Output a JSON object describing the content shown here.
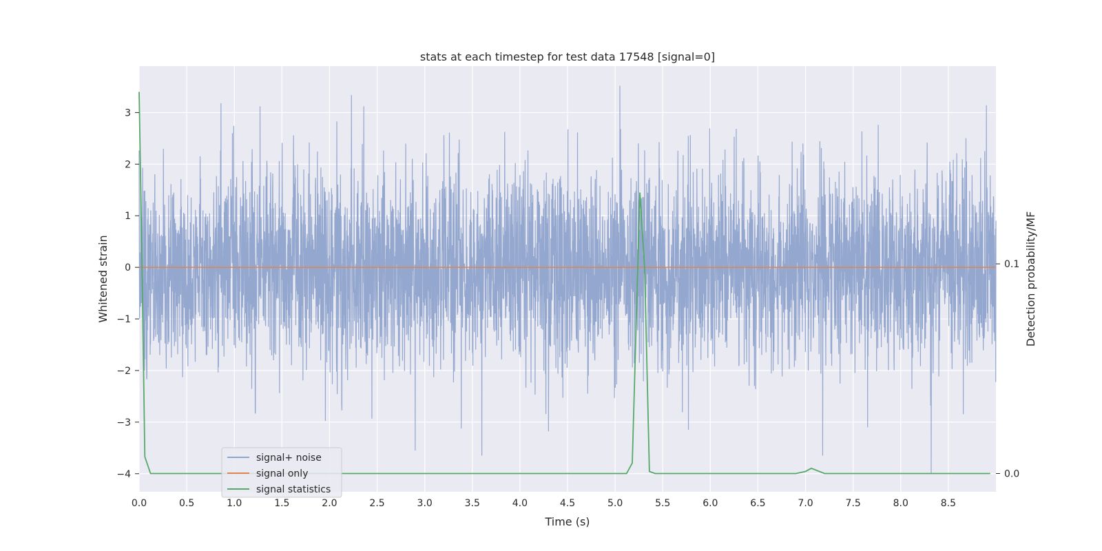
{
  "chart_data": {
    "type": "line",
    "title": "stats at each timestep for test data 17548 [signal=0]",
    "xlabel": "Time (s)",
    "ylabel": "Whitened strain",
    "y2label": "Detection probability/MF",
    "xlim": [
      0.0,
      9.0
    ],
    "ylim": [
      -4.35,
      3.9
    ],
    "y2lim": [
      -0.0087,
      0.1943
    ],
    "x_ticks": [
      "0.0",
      "0.5",
      "1.0",
      "1.5",
      "2.0",
      "2.5",
      "3.0",
      "3.5",
      "4.0",
      "4.5",
      "5.0",
      "5.5",
      "6.0",
      "6.5",
      "7.0",
      "7.5",
      "8.0",
      "8.5"
    ],
    "y_ticks": [
      "3",
      "2",
      "1",
      "0",
      "−1",
      "−2",
      "−3",
      "−4"
    ],
    "y2_ticks": [
      "0.1",
      "0.0"
    ],
    "grid": true,
    "legend_position": "lower-left",
    "colors": {
      "noise": "#8fa3cc",
      "signal_only": "#dd8452",
      "statistics": "#55a868",
      "background": "#eaeaf2",
      "grid": "#ffffff"
    },
    "series": [
      {
        "name": "signal+ noise",
        "axis": "left",
        "description_only": false,
        "x_start": 0.0,
        "x_end": 9.0,
        "std": 0.93,
        "peaks": [
          [
            0.86,
            3.18
          ],
          [
            1.27,
            3.12
          ],
          [
            2.23,
            3.34
          ],
          [
            2.36,
            3.12
          ],
          [
            5.05,
            3.52
          ],
          [
            8.9,
            3.14
          ],
          [
            2.9,
            -3.55
          ],
          [
            3.6,
            -3.65
          ],
          [
            4.3,
            -3.18
          ],
          [
            5.77,
            -3.15
          ],
          [
            7.18,
            -3.65
          ],
          [
            8.32,
            -4.0
          ],
          [
            0.98,
            2.6
          ]
        ]
      },
      {
        "name": "signal only",
        "axis": "left",
        "x": [
          0.0,
          9.0
        ],
        "y": [
          0.0,
          0.0
        ]
      },
      {
        "name": "signal statistics",
        "axis": "right",
        "x": [
          0.0,
          0.03,
          0.06,
          0.12,
          0.5,
          1.0,
          2.0,
          3.0,
          4.0,
          5.0,
          5.12,
          5.18,
          5.26,
          5.31,
          5.36,
          5.42,
          6.0,
          6.9,
          7.0,
          7.06,
          7.2,
          7.5,
          8.5,
          8.94
        ],
        "y": [
          0.182,
          0.1,
          0.008,
          0.0,
          0.0,
          0.0,
          0.0,
          0.0,
          0.0,
          0.0,
          0.0,
          0.005,
          0.134,
          0.098,
          0.001,
          0.0,
          0.0,
          0.0,
          0.001,
          0.0025,
          0.0,
          0.0,
          0.0,
          0.0
        ]
      }
    ]
  }
}
